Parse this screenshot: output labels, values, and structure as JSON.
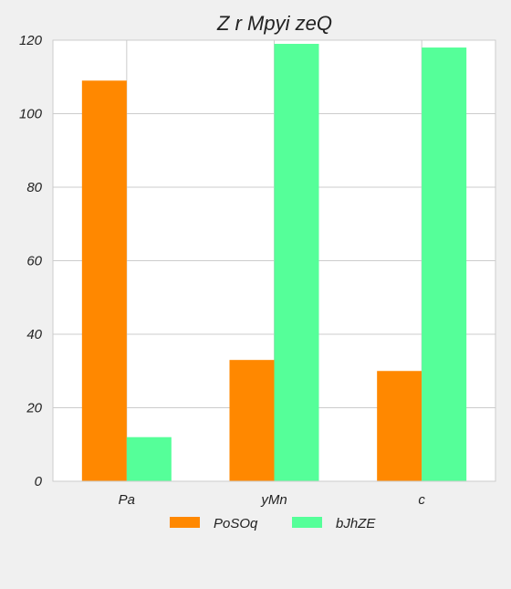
{
  "chart_data": {
    "type": "bar",
    "title": "Z r Mpyi zeQ",
    "xlabel": "",
    "ylabel": "",
    "categories": [
      "Pa",
      "yMn",
      "c"
    ],
    "series": [
      {
        "name": "PoSOq",
        "color": "#ff8800",
        "values": [
          109,
          33,
          30
        ]
      },
      {
        "name": "bJhZE",
        "color": "#55ff99",
        "values": [
          12,
          119,
          118
        ]
      }
    ],
    "ylim": [
      0,
      120
    ],
    "yticks": [
      0,
      20,
      40,
      60,
      80,
      100,
      120
    ],
    "grid": "horizontal",
    "legend_position": "bottom"
  }
}
